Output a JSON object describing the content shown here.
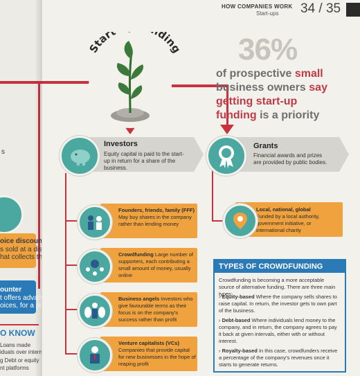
{
  "header": {
    "section_title": "HOW COMPANIES WORK",
    "subsection": "Start-ups",
    "page_numbers": "34 / 35"
  },
  "title": "Start-up funding",
  "stat": {
    "big_number": "36%",
    "line1_a": "of prospective ",
    "line1_b": "small",
    "line2_a": "business owners ",
    "line2_b": "say",
    "line3_a": "getting start-up",
    "line4_a": "funding ",
    "line4_b": "is a priority"
  },
  "investors": {
    "heading": "Investors",
    "text": "Equity capital is paid to the start-up in return for a share of the business."
  },
  "grants": {
    "heading": "Grants",
    "text": "Financial awards and prizes are provided by public bodies."
  },
  "grant_item": {
    "heading": "Local, national, global",
    "text": "Funded by a local authority, government initiative, or international charity"
  },
  "investor_items": [
    {
      "heading": "Founders, friends, family (FFF)",
      "text": "May buy shares in the company rather than lending money"
    },
    {
      "heading": "Crowdfunding",
      "text": "Large number of supporters, each contributing a small amount of money, usually online"
    },
    {
      "heading": "Business angels",
      "text": "Investors who give favourable terms as their focus is on the company's success rather than profit"
    },
    {
      "heading": "Venture capitalists (VCs)",
      "text": "Companies that provide capital for new businesses in the hope of reaping profit"
    }
  ],
  "types_box": {
    "heading": "TYPES OF CROWDFUNDING",
    "intro": "Crowdfunding is becoming a more acceptable source of alternative funding. There are three main types:",
    "items": [
      {
        "label": "Equity-based",
        "text": "Where the company sells shares to raise capital. In return, the investor gets to own part of the business."
      },
      {
        "label": "Debt-based",
        "text": "Where individuals lend money to the company, and in return, the company agrees to pay it back at given intervals, either with or without interest."
      },
      {
        "label": "Royalty-based",
        "text": "In this case, crowdfunders receive a percentage of the company's revenues once it starts to generate returns."
      }
    ]
  },
  "left_page": {
    "frag1": "oice discounting",
    "frag2": "s sold at a discount",
    "frag3": "hat collects them",
    "frag4": "ounter",
    "frag5": "t offers advance",
    "frag6": "oices, for a profit",
    "frag7": "O KNOW",
    "frag8": "Loans made",
    "frag9": "iduals over internet",
    "frag10": "g  Debt or equity",
    "frag11": "nt platforms",
    "frag12": "s"
  },
  "colors": {
    "red": "#c8323f",
    "teal": "#4aa8a0",
    "orange": "#efa23e",
    "blue": "#2b7ab8",
    "band_gray": "#d6d4cf"
  }
}
